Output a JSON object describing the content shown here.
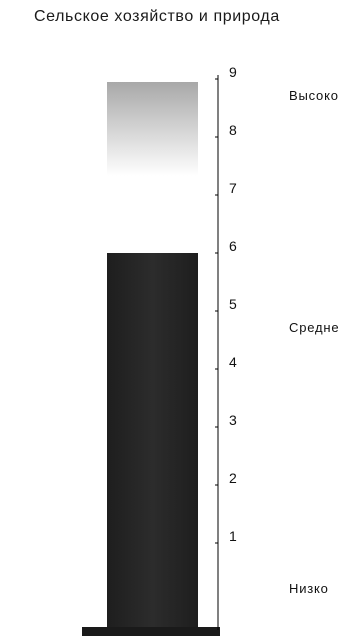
{
  "title": "Сельское хозяйство и природа",
  "colors": {
    "fill": "#262626",
    "empty_top": "#a8a8a8",
    "empty_mid": "#ffffff",
    "axis": "#000000",
    "base": "#1a1a1a"
  },
  "chart_data": {
    "type": "bar",
    "categories": [
      ""
    ],
    "values": [
      6
    ],
    "ylim": [
      0,
      9
    ],
    "yticks": [
      1,
      2,
      3,
      4,
      5,
      6,
      7,
      8,
      9
    ],
    "level_labels": [
      {
        "text": "Высоко",
        "value": 9
      },
      {
        "text": "Средне",
        "value": 5
      },
      {
        "text": "Низко",
        "value": 0.5
      }
    ],
    "grid": false
  }
}
